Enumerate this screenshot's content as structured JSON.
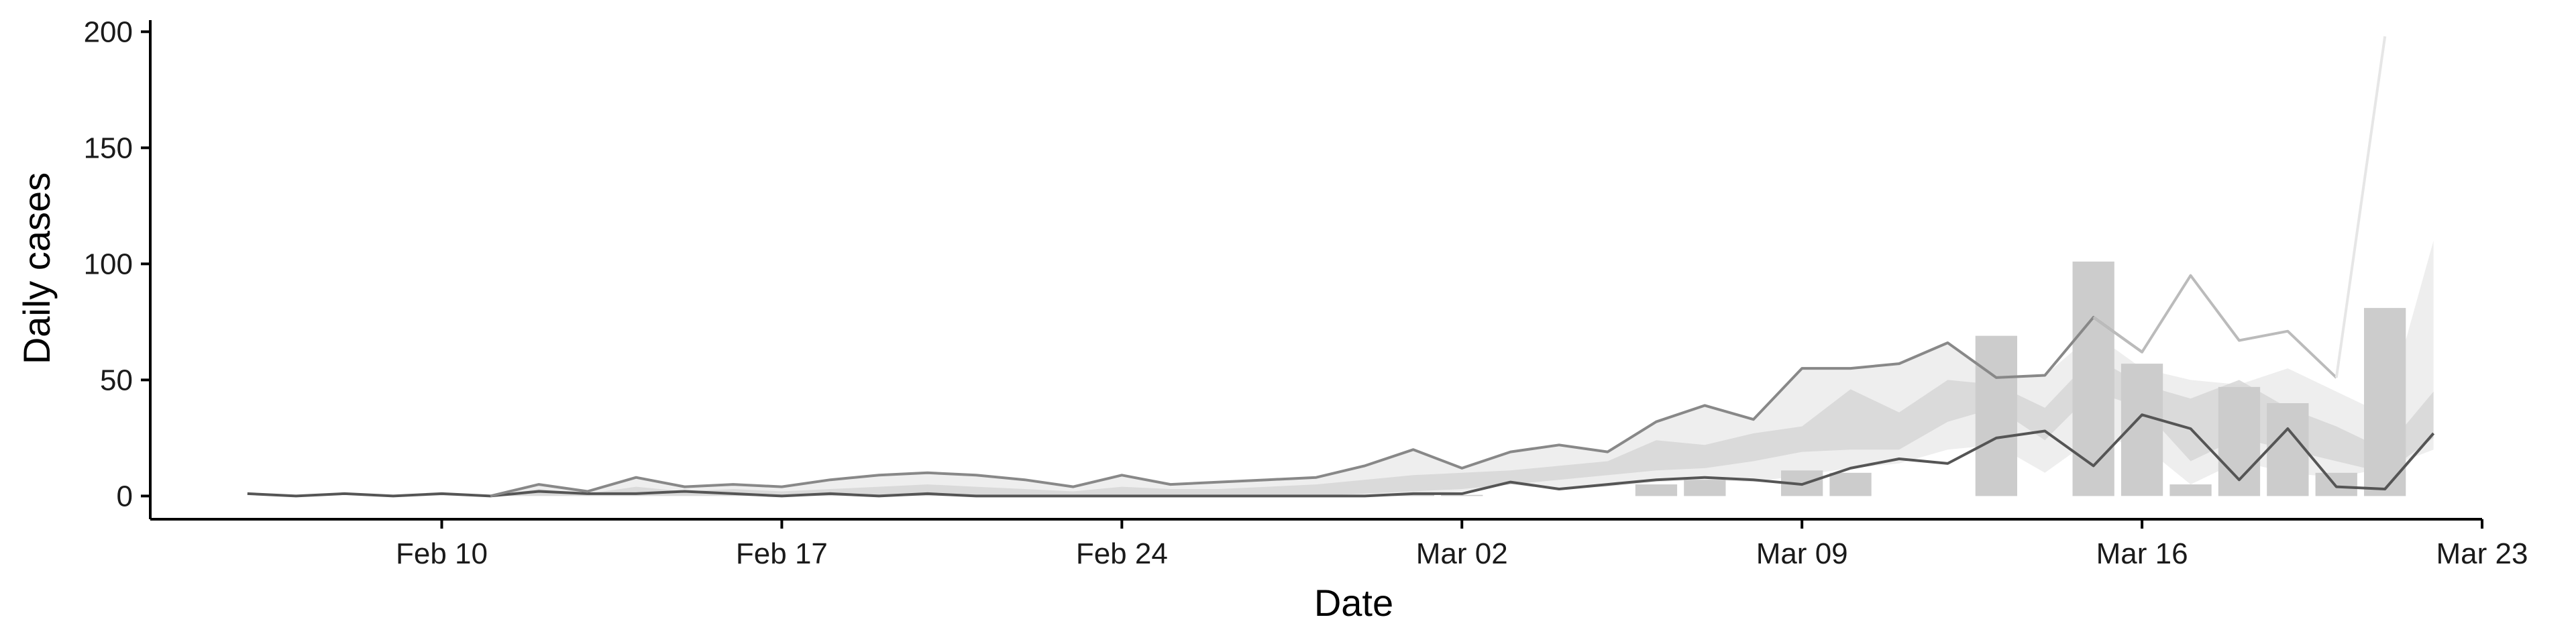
{
  "chart_data": {
    "type": "bar",
    "title": "",
    "xlabel": "Date",
    "ylabel": "Daily cases",
    "x_range": [
      "2020-02-04",
      "2020-03-23"
    ],
    "ylim": [
      -10,
      205
    ],
    "x_ticks": [
      {
        "date": "2020-02-10",
        "label": "Feb 10"
      },
      {
        "date": "2020-02-17",
        "label": "Feb 17"
      },
      {
        "date": "2020-02-24",
        "label": "Feb 24"
      },
      {
        "date": "2020-03-02",
        "label": "Mar 02"
      },
      {
        "date": "2020-03-09",
        "label": "Mar 09"
      },
      {
        "date": "2020-03-16",
        "label": "Mar 16"
      },
      {
        "date": "2020-03-23",
        "label": "Mar 23"
      }
    ],
    "y_ticks": [
      0,
      50,
      100,
      150,
      200
    ],
    "grid": false,
    "legend": "none",
    "colors": {
      "axis": "#000000",
      "bars": "#cccccc",
      "band_outer": "#eeeeee",
      "band_inner": "#d6d6d6",
      "line_dark": "#555555",
      "line_mid": "#888888",
      "line_light": "#bbbbbb",
      "line_faint": "#e6e6e6"
    },
    "bars": [
      {
        "date": "2020-03-01",
        "value": 1
      },
      {
        "date": "2020-03-02",
        "value": 0.5
      },
      {
        "date": "2020-03-06",
        "value": 5
      },
      {
        "date": "2020-03-07",
        "value": 7
      },
      {
        "date": "2020-03-09",
        "value": 11
      },
      {
        "date": "2020-03-10",
        "value": 10
      },
      {
        "date": "2020-03-13",
        "value": 69
      },
      {
        "date": "2020-03-15",
        "value": 101
      },
      {
        "date": "2020-03-16",
        "value": 57
      },
      {
        "date": "2020-03-17",
        "value": 5
      },
      {
        "date": "2020-03-18",
        "value": 47
      },
      {
        "date": "2020-03-19",
        "value": 40
      },
      {
        "date": "2020-03-20",
        "value": 10
      },
      {
        "date": "2020-03-21",
        "value": 81
      }
    ],
    "band_start": "2020-02-06",
    "band_outer": {
      "upper": [
        1,
        0,
        1,
        0,
        1,
        0,
        5,
        2,
        8,
        4,
        5,
        4,
        7,
        9,
        10,
        9,
        7,
        4,
        9,
        5,
        6,
        7,
        8,
        13,
        20,
        12,
        19,
        22,
        19,
        32,
        39,
        33,
        55,
        55,
        57,
        66,
        51,
        52,
        70,
        55,
        50,
        48,
        55,
        45,
        35,
        110
      ],
      "lower": [
        1,
        0,
        1,
        0,
        0,
        0,
        0,
        0,
        0,
        0,
        0,
        0,
        0,
        0,
        0,
        0,
        0,
        0,
        0,
        0,
        0,
        0,
        0,
        0,
        1,
        2,
        5,
        3,
        4,
        6,
        7,
        6,
        9,
        12,
        14,
        20,
        22,
        10,
        25,
        22,
        5,
        15,
        10,
        8,
        12,
        20
      ]
    },
    "band_inner": {
      "upper": [
        1,
        0,
        1,
        0,
        0,
        0,
        3,
        1,
        4,
        2,
        3,
        2,
        3,
        4,
        5,
        4,
        3,
        2,
        4,
        3,
        3,
        4,
        5,
        7,
        9,
        10,
        11,
        13,
        15,
        24,
        22,
        27,
        30,
        46,
        36,
        50,
        48,
        38,
        60,
        48,
        42,
        50,
        38,
        30,
        20,
        45
      ],
      "lower": [
        1,
        0,
        1,
        0,
        0,
        0,
        0,
        0,
        0,
        0,
        0,
        0,
        0,
        0,
        0,
        0,
        0,
        0,
        0,
        0,
        0,
        0,
        0,
        1,
        2,
        3,
        5,
        7,
        9,
        11,
        12,
        15,
        19,
        20,
        20,
        32,
        38,
        24,
        45,
        38,
        15,
        25,
        20,
        15,
        10,
        25
      ]
    },
    "lines": [
      {
        "style": "line_dark",
        "start": "2020-02-06",
        "values": [
          1,
          0,
          1,
          0,
          1,
          0,
          2,
          1,
          1,
          2,
          1,
          0,
          1,
          0,
          1,
          0,
          0,
          0,
          0,
          0,
          0,
          0,
          0,
          0,
          1,
          1,
          6,
          3,
          5,
          7,
          8,
          7,
          5,
          12,
          16,
          14,
          25,
          28,
          13,
          35,
          29,
          7,
          29,
          4,
          3,
          27
        ]
      },
      {
        "style": "line_mid",
        "start": "2020-02-11",
        "values": [
          0,
          5,
          2,
          8,
          4,
          5,
          4,
          7,
          9,
          10,
          9,
          7,
          4,
          9,
          5,
          6,
          7,
          8,
          13,
          20,
          12,
          19,
          22,
          19,
          32,
          39,
          33,
          55,
          55,
          57,
          66,
          51,
          52,
          77,
          62
        ]
      },
      {
        "style": "line_light",
        "start": "2020-03-15",
        "values": [
          77,
          62,
          95,
          67,
          71,
          51
        ]
      },
      {
        "style": "line_faint",
        "start": "2020-03-20",
        "values": [
          51,
          198
        ]
      }
    ]
  }
}
